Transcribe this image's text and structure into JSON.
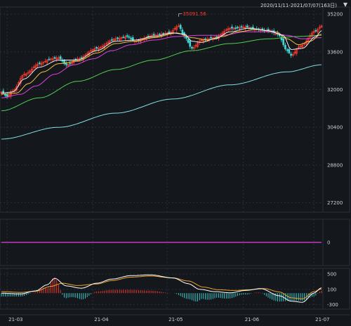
{
  "header": {
    "range_label": "2020/11/11-2021/07/07(163日)",
    "dropdown_icon": "caret-down-icon"
  },
  "colors": {
    "background": "#14171c",
    "grid": "#2b3038",
    "up": "#ff3b30",
    "down": "#40d6d6",
    "ma5": "#ffffff",
    "ma10": "#f0c040",
    "ma20": "#e040e0",
    "ma60": "#50d050",
    "ma120": "#80e0e0",
    "dif": "#ffffff",
    "dea": "#f0a030",
    "volume_line": "#e040e0"
  },
  "chart_data": [
    {
      "type": "candlestick",
      "title": "",
      "ylim": [
        26800,
        35500
      ],
      "y_ticks": [
        27200,
        28800,
        30400,
        32000,
        33600,
        35200
      ],
      "y_tick_labels": [
        "27200",
        "28800",
        "30400",
        "32000",
        "33600",
        "35200"
      ],
      "x_labels": [
        {
          "label": "21-03",
          "index": 3
        },
        {
          "label": "21-04",
          "index": 48
        },
        {
          "label": "21-05",
          "index": 87
        },
        {
          "label": "21-06",
          "index": 127
        },
        {
          "label": "21-07",
          "index": 164
        }
      ],
      "peak": {
        "label": "35091.56",
        "value": 35091.56,
        "index": 93
      },
      "series": [
        {
          "name": "close",
          "anchors": [
            [
              0,
              31900
            ],
            [
              3,
              31700
            ],
            [
              6,
              31950
            ],
            [
              12,
              32650
            ],
            [
              20,
              33100
            ],
            [
              26,
              33300
            ],
            [
              30,
              33350
            ],
            [
              34,
              33050
            ],
            [
              40,
              33300
            ],
            [
              50,
              33750
            ],
            [
              60,
              34150
            ],
            [
              66,
              34250
            ],
            [
              70,
              34050
            ],
            [
              80,
              34300
            ],
            [
              88,
              34400
            ],
            [
              93,
              34700
            ],
            [
              96,
              34250
            ],
            [
              100,
              33750
            ],
            [
              105,
              34100
            ],
            [
              112,
              34200
            ],
            [
              120,
              34600
            ],
            [
              128,
              34650
            ],
            [
              134,
              34550
            ],
            [
              140,
              34500
            ],
            [
              145,
              34350
            ],
            [
              150,
              33650
            ],
            [
              152,
              33450
            ],
            [
              157,
              33850
            ],
            [
              165,
              34500
            ],
            [
              168,
              34700
            ]
          ]
        },
        {
          "name": "MA5",
          "anchors": [
            [
              0,
              31850
            ],
            [
              6,
              31900
            ],
            [
              12,
              32450
            ],
            [
              20,
              32950
            ],
            [
              30,
              33250
            ],
            [
              40,
              33250
            ],
            [
              50,
              33650
            ],
            [
              60,
              34050
            ],
            [
              70,
              34100
            ],
            [
              80,
              34250
            ],
            [
              90,
              34400
            ],
            [
              96,
              34350
            ],
            [
              100,
              34050
            ],
            [
              105,
              34000
            ],
            [
              112,
              34150
            ],
            [
              120,
              34450
            ],
            [
              130,
              34600
            ],
            [
              140,
              34500
            ],
            [
              148,
              34300
            ],
            [
              152,
              33700
            ],
            [
              158,
              33750
            ],
            [
              165,
              34250
            ],
            [
              168,
              34500
            ]
          ]
        },
        {
          "name": "MA10",
          "anchors": [
            [
              0,
              31800
            ],
            [
              8,
              31850
            ],
            [
              14,
              32250
            ],
            [
              22,
              32750
            ],
            [
              30,
              33100
            ],
            [
              40,
              33200
            ],
            [
              50,
              33550
            ],
            [
              60,
              33950
            ],
            [
              70,
              34050
            ],
            [
              80,
              34200
            ],
            [
              92,
              34400
            ],
            [
              100,
              34200
            ],
            [
              108,
              34100
            ],
            [
              116,
              34250
            ],
            [
              124,
              34450
            ],
            [
              134,
              34550
            ],
            [
              144,
              34450
            ],
            [
              150,
              34150
            ],
            [
              156,
              33900
            ],
            [
              162,
              34050
            ],
            [
              168,
              34350
            ]
          ]
        },
        {
          "name": "MA20",
          "anchors": [
            [
              0,
              31650
            ],
            [
              10,
              31800
            ],
            [
              18,
              32150
            ],
            [
              28,
              32650
            ],
            [
              38,
              33050
            ],
            [
              48,
              33300
            ],
            [
              58,
              33650
            ],
            [
              68,
              33900
            ],
            [
              80,
              34100
            ],
            [
              92,
              34250
            ],
            [
              104,
              34300
            ],
            [
              116,
              34300
            ],
            [
              128,
              34450
            ],
            [
              140,
              34450
            ],
            [
              150,
              34300
            ],
            [
              158,
              34150
            ],
            [
              168,
              34200
            ]
          ]
        },
        {
          "name": "MA60",
          "anchors": [
            [
              0,
              31100
            ],
            [
              20,
              31650
            ],
            [
              40,
              32350
            ],
            [
              60,
              32850
            ],
            [
              80,
              33250
            ],
            [
              100,
              33650
            ],
            [
              120,
              33950
            ],
            [
              140,
              34150
            ],
            [
              155,
              34250
            ],
            [
              168,
              34300
            ]
          ]
        },
        {
          "name": "MA120",
          "anchors": [
            [
              0,
              29900
            ],
            [
              30,
              30400
            ],
            [
              60,
              31000
            ],
            [
              90,
              31600
            ],
            [
              120,
              32200
            ],
            [
              150,
              32750
            ],
            [
              168,
              33050
            ]
          ]
        }
      ]
    },
    {
      "type": "line",
      "title": "",
      "ylim": [
        -100,
        100
      ],
      "y_ticks": [
        0
      ],
      "y_tick_labels": [
        "0"
      ],
      "series": [
        {
          "name": "volume-line",
          "anchors": [
            [
              0,
              0
            ],
            [
              168,
              0
            ]
          ]
        }
      ]
    },
    {
      "type": "macd",
      "title": "",
      "ylim": [
        -420,
        650
      ],
      "y_ticks": [
        500,
        100,
        -300
      ],
      "y_tick_labels": [
        "500",
        "100",
        "-300"
      ],
      "series": [
        {
          "name": "DIF",
          "anchors": [
            [
              0,
              0
            ],
            [
              10,
              -20
            ],
            [
              18,
              60
            ],
            [
              24,
              220
            ],
            [
              28,
              390
            ],
            [
              34,
              190
            ],
            [
              42,
              130
            ],
            [
              50,
              260
            ],
            [
              58,
              370
            ],
            [
              68,
              460
            ],
            [
              78,
              480
            ],
            [
              90,
              400
            ],
            [
              98,
              250
            ],
            [
              104,
              100
            ],
            [
              112,
              40
            ],
            [
              120,
              10
            ],
            [
              128,
              70
            ],
            [
              136,
              120
            ],
            [
              146,
              -70
            ],
            [
              152,
              -210
            ],
            [
              158,
              -240
            ],
            [
              164,
              0
            ],
            [
              168,
              140
            ]
          ]
        },
        {
          "name": "DEA",
          "anchors": [
            [
              0,
              40
            ],
            [
              10,
              20
            ],
            [
              18,
              50
            ],
            [
              26,
              180
            ],
            [
              32,
              260
            ],
            [
              40,
              200
            ],
            [
              50,
              240
            ],
            [
              58,
              330
            ],
            [
              68,
              420
            ],
            [
              78,
              450
            ],
            [
              90,
              400
            ],
            [
              98,
              320
            ],
            [
              106,
              160
            ],
            [
              114,
              90
            ],
            [
              122,
              70
            ],
            [
              130,
              90
            ],
            [
              138,
              120
            ],
            [
              146,
              30
            ],
            [
              152,
              -120
            ],
            [
              158,
              -150
            ],
            [
              164,
              40
            ],
            [
              168,
              110
            ]
          ]
        }
      ]
    }
  ]
}
